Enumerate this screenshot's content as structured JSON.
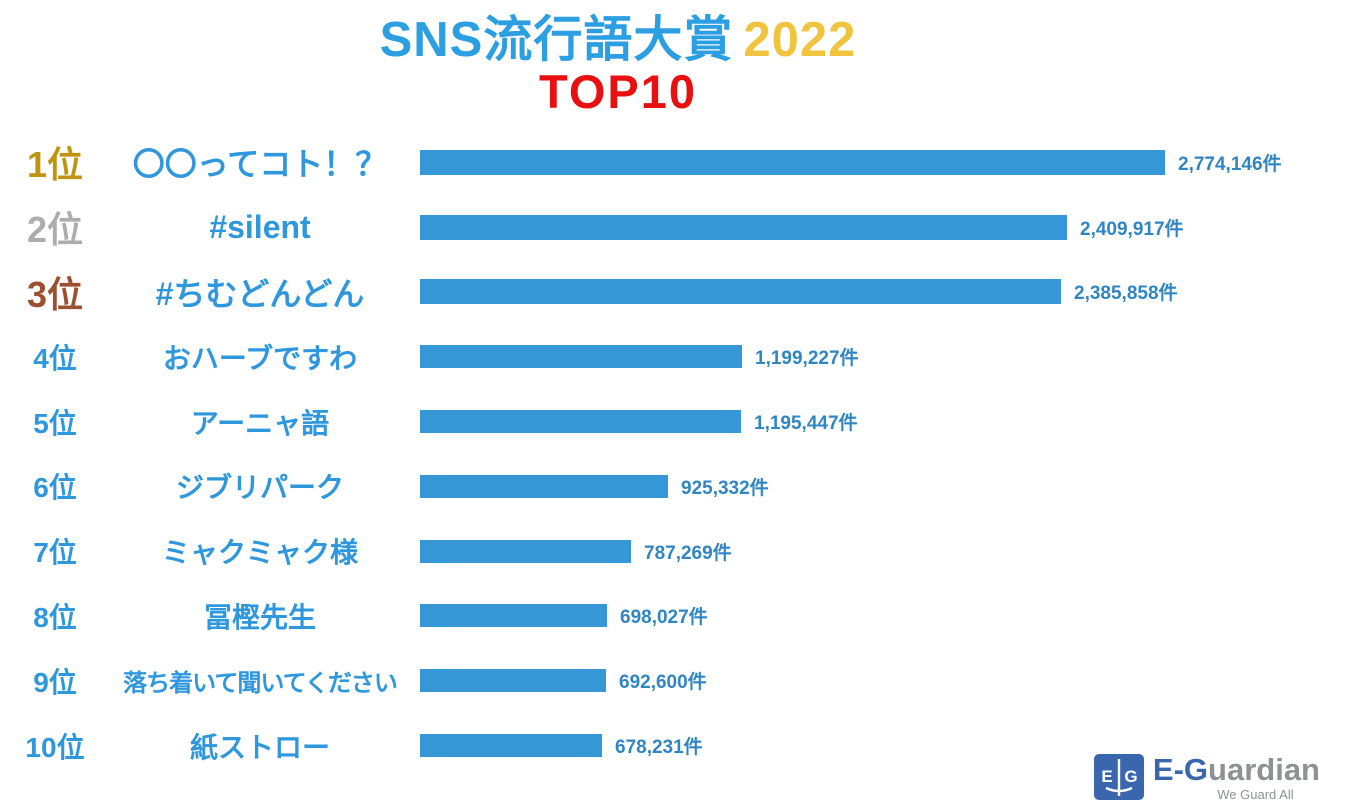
{
  "page": {
    "title_main": "SNS流行語大賞",
    "title_year": "2022",
    "title_sub": "TOP10"
  },
  "chart_data": {
    "type": "bar",
    "orientation": "horizontal",
    "title": "SNS流行語大賞 2022 TOP10",
    "unit": "件",
    "rank_labels": [
      "1位",
      "2位",
      "3位",
      "4位",
      "5位",
      "6位",
      "7位",
      "8位",
      "9位",
      "10位"
    ],
    "categories": [
      "〇〇ってコト！？",
      "#silent",
      "#ちむどんどん",
      "おハーブですわ",
      "アーニャ語",
      "ジブリパーク",
      "ミャクミャク様",
      "冨樫先生",
      "落ち着いて聞いてください",
      "紙ストロー"
    ],
    "values": [
      2774146,
      2409917,
      2385858,
      1199227,
      1195447,
      925332,
      787269,
      698027,
      692600,
      678231
    ],
    "value_labels": [
      "2,774,146件",
      "2,409,917件",
      "2,385,858件",
      "1,199,227件",
      "1,195,447件",
      "925,332件",
      "787,269件",
      "698,027件",
      "692,600件",
      "678,231件"
    ],
    "xlim": [
      0,
      2774146
    ],
    "grid": false,
    "legend": false,
    "bar_color": "#3697D6"
  },
  "colors": {
    "title_blue": "#2C9FE3",
    "year_yellow": "#F0C43E",
    "top10_red": "#E81010",
    "term_blue": "#2F97DC",
    "value_blue": "#2F86C2",
    "bar_blue": "#3697D6",
    "rank_gold": "#C09413",
    "rank_silver": "#ADADAD",
    "rank_bronze": "#9C5030",
    "logo_blue": "#3A66AE",
    "logo_gray": "#8F9194"
  },
  "logo": {
    "mark_letter_left": "E",
    "mark_letter_right": "G",
    "brand_blue_part": "E-G",
    "brand_gray_part": "uardian",
    "tagline": "We Guard All"
  }
}
